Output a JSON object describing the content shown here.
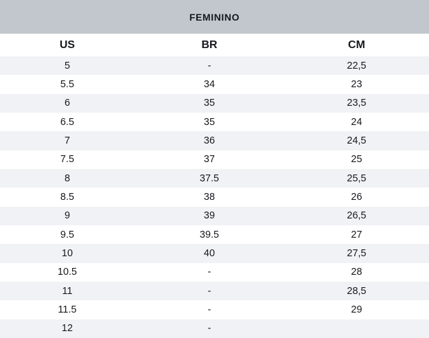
{
  "title": "FEMININO",
  "table": {
    "columns": [
      "US",
      "BR",
      "CM"
    ],
    "rows": [
      [
        "5",
        "-",
        "22,5"
      ],
      [
        "5.5",
        "34",
        "23"
      ],
      [
        "6",
        "35",
        "23,5"
      ],
      [
        "6.5",
        "35",
        "24"
      ],
      [
        "7",
        "36",
        "24,5"
      ],
      [
        "7.5",
        "37",
        "25"
      ],
      [
        "8",
        "37.5",
        "25,5"
      ],
      [
        "8.5",
        "38",
        "26"
      ],
      [
        "9",
        "39",
        "26,5"
      ],
      [
        "9.5",
        "39.5",
        "27"
      ],
      [
        "10",
        "40",
        "27,5"
      ],
      [
        "10.5",
        "-",
        "28"
      ],
      [
        "11",
        "-",
        "28,5"
      ],
      [
        "11.5",
        "-",
        "29"
      ],
      [
        "12",
        "-",
        ""
      ]
    ]
  },
  "colors": {
    "title_bar_bg": "#c1c7cd",
    "stripe_bg": "#f0f2f5",
    "text": "#16181c"
  }
}
